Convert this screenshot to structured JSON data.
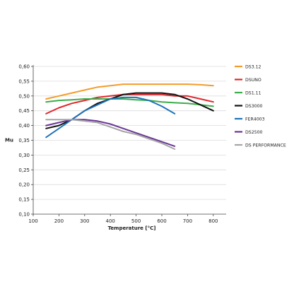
{
  "chart_data": {
    "type": "line",
    "xlabel": "Temperature [°C]",
    "ylabel": "Mu",
    "xlim": [
      100,
      850
    ],
    "ylim": [
      0.1,
      0.6
    ],
    "x_ticks": [
      "100",
      "200",
      "300",
      "400",
      "500",
      "600",
      "700",
      "800"
    ],
    "y_ticks": [
      "0,10",
      "0,15",
      "0,20",
      "0,25",
      "0,30",
      "0,35",
      "0,40",
      "0,45",
      "0,50",
      "0,55",
      "0,60"
    ],
    "grid": "horizontal",
    "legend_position": "right",
    "series": [
      {
        "name": "DS3.12",
        "color": "#f39c2a",
        "points": [
          [
            150,
            0.49
          ],
          [
            200,
            0.5
          ],
          [
            250,
            0.51
          ],
          [
            300,
            0.52
          ],
          [
            350,
            0.53
          ],
          [
            400,
            0.535
          ],
          [
            450,
            0.54
          ],
          [
            500,
            0.54
          ],
          [
            550,
            0.54
          ],
          [
            600,
            0.54
          ],
          [
            650,
            0.54
          ],
          [
            700,
            0.54
          ],
          [
            750,
            0.538
          ],
          [
            800,
            0.535
          ]
        ]
      },
      {
        "name": "DSUNO",
        "color": "#e0262b",
        "points": [
          [
            150,
            0.44
          ],
          [
            200,
            0.46
          ],
          [
            250,
            0.475
          ],
          [
            300,
            0.485
          ],
          [
            350,
            0.495
          ],
          [
            400,
            0.5
          ],
          [
            450,
            0.505
          ],
          [
            500,
            0.505
          ],
          [
            550,
            0.505
          ],
          [
            600,
            0.505
          ],
          [
            650,
            0.5
          ],
          [
            700,
            0.5
          ],
          [
            750,
            0.49
          ],
          [
            800,
            0.48
          ]
        ]
      },
      {
        "name": "DS1.11",
        "color": "#3aae49",
        "points": [
          [
            150,
            0.48
          ],
          [
            200,
            0.485
          ],
          [
            250,
            0.487
          ],
          [
            300,
            0.49
          ],
          [
            350,
            0.49
          ],
          [
            400,
            0.49
          ],
          [
            450,
            0.49
          ],
          [
            500,
            0.487
          ],
          [
            550,
            0.485
          ],
          [
            600,
            0.48
          ],
          [
            650,
            0.477
          ],
          [
            700,
            0.475
          ],
          [
            750,
            0.47
          ],
          [
            800,
            0.465
          ]
        ]
      },
      {
        "name": "DS3000",
        "color": "#111111",
        "points": [
          [
            150,
            0.39
          ],
          [
            200,
            0.4
          ],
          [
            250,
            0.42
          ],
          [
            300,
            0.45
          ],
          [
            350,
            0.475
          ],
          [
            400,
            0.49
          ],
          [
            450,
            0.505
          ],
          [
            500,
            0.51
          ],
          [
            550,
            0.51
          ],
          [
            600,
            0.51
          ],
          [
            650,
            0.505
          ],
          [
            700,
            0.49
          ],
          [
            750,
            0.47
          ],
          [
            800,
            0.45
          ]
        ]
      },
      {
        "name": "FER4003",
        "color": "#1f74b8",
        "points": [
          [
            150,
            0.36
          ],
          [
            200,
            0.39
          ],
          [
            250,
            0.42
          ],
          [
            300,
            0.45
          ],
          [
            350,
            0.47
          ],
          [
            400,
            0.49
          ],
          [
            450,
            0.495
          ],
          [
            500,
            0.495
          ],
          [
            550,
            0.485
          ],
          [
            600,
            0.465
          ],
          [
            650,
            0.44
          ]
        ]
      },
      {
        "name": "DS2500",
        "color": "#6b3596",
        "points": [
          [
            150,
            0.4
          ],
          [
            200,
            0.41
          ],
          [
            250,
            0.42
          ],
          [
            300,
            0.42
          ],
          [
            350,
            0.415
          ],
          [
            400,
            0.405
          ],
          [
            450,
            0.39
          ],
          [
            500,
            0.375
          ],
          [
            550,
            0.36
          ],
          [
            600,
            0.345
          ],
          [
            650,
            0.33
          ]
        ]
      },
      {
        "name": "DS PERFORMANCE",
        "color": "#a5a5a5",
        "points": [
          [
            150,
            0.42
          ],
          [
            200,
            0.42
          ],
          [
            250,
            0.42
          ],
          [
            300,
            0.415
          ],
          [
            350,
            0.41
          ],
          [
            400,
            0.395
          ],
          [
            450,
            0.38
          ],
          [
            500,
            0.37
          ],
          [
            550,
            0.355
          ],
          [
            600,
            0.34
          ],
          [
            650,
            0.32
          ]
        ]
      }
    ]
  }
}
